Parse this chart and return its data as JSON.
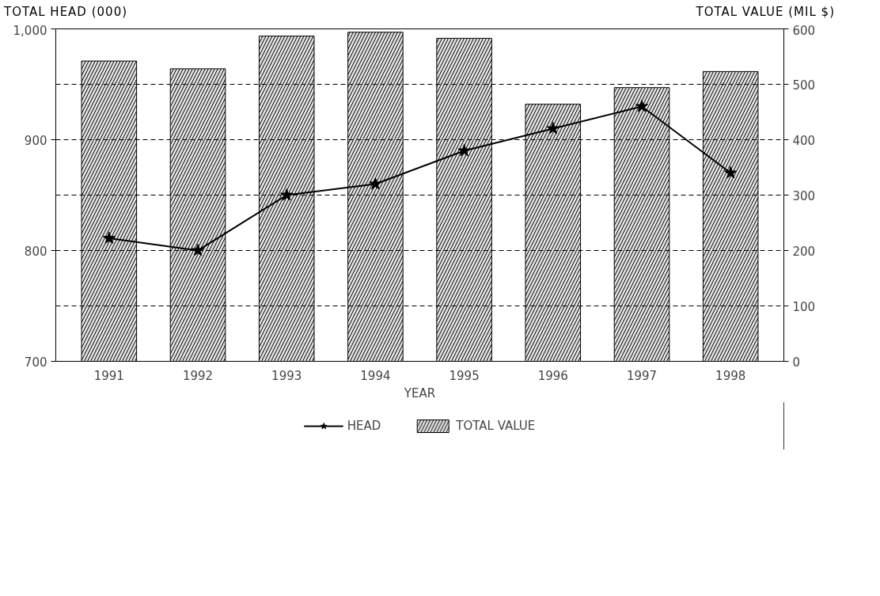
{
  "chart_data": {
    "type": "bar",
    "xlabel": "YEAR",
    "ylabel": "TOTAL HEAD (000)",
    "y2label": "TOTAL VALUE (MIL $)",
    "categories": [
      "1991",
      "1992",
      "1993",
      "1994",
      "1995",
      "1996",
      "1997",
      "1998"
    ],
    "series": [
      {
        "name": "HEAD",
        "type": "line",
        "color": "#000000",
        "marker": "star",
        "values": [
          811,
          800,
          850,
          860,
          890,
          910,
          930,
          870
        ]
      },
      {
        "name": "TOTAL VALUE",
        "type": "bar",
        "axis": "y2",
        "color": "#000000",
        "values": [
          542,
          528,
          587,
          594,
          583,
          464,
          494,
          523
        ]
      }
    ],
    "ylim": [
      700,
      1000
    ],
    "yticks": [
      700,
      800,
      900,
      {
        "value": 1000,
        "label": "1,000"
      }
    ],
    "y2lim": [
      0,
      600
    ],
    "y2ticks": [
      0,
      100,
      200,
      300,
      400,
      500,
      600
    ],
    "grid": "y",
    "legend": "bottom"
  }
}
